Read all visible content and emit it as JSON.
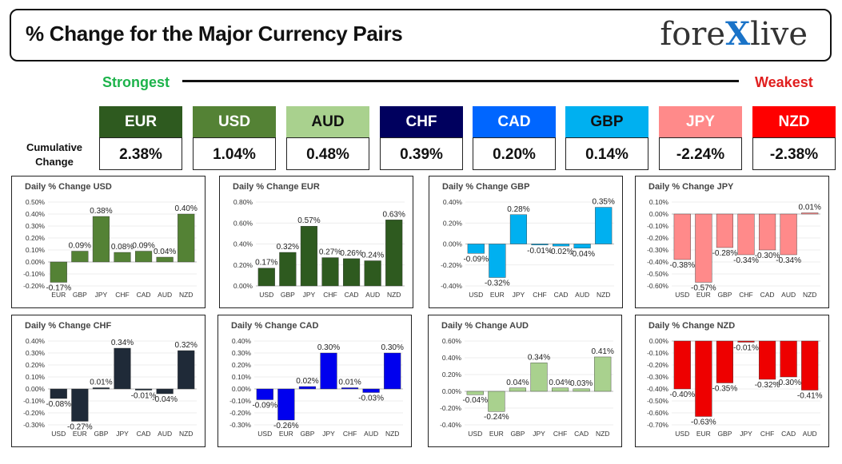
{
  "header": {
    "title": "% Change for the Major Currency Pairs",
    "logo_left": "fore",
    "logo_x": "X",
    "logo_right": "live"
  },
  "ranking": {
    "strongest": "Strongest",
    "weakest": "Weakest"
  },
  "cumulative_label": "Cumulative Change",
  "currencies": [
    {
      "name": "EUR",
      "value": "2.38%",
      "color": "#2e5a1f",
      "text_color": "#ffffff"
    },
    {
      "name": "USD",
      "value": "1.04%",
      "color": "#548235",
      "text_color": "#ffffff"
    },
    {
      "name": "AUD",
      "value": "0.48%",
      "color": "#a9d18e",
      "text_color": "#111111"
    },
    {
      "name": "CHF",
      "value": "0.39%",
      "color": "#00005e",
      "text_color": "#ffffff"
    },
    {
      "name": "CAD",
      "value": "0.20%",
      "color": "#0066ff",
      "text_color": "#ffffff"
    },
    {
      "name": "GBP",
      "value": "0.14%",
      "color": "#00b0f0",
      "text_color": "#111111"
    },
    {
      "name": "JPY",
      "value": "-2.24%",
      "color": "#ff8a8a",
      "text_color": "#ffffff"
    },
    {
      "name": "NZD",
      "value": "-2.38%",
      "color": "#ff0000",
      "text_color": "#ffffff"
    }
  ],
  "chart_data": [
    {
      "type": "bar",
      "title": "Daily % Change USD",
      "categories": [
        "EUR",
        "GBP",
        "JPY",
        "CHF",
        "CAD",
        "AUD",
        "NZD"
      ],
      "values": [
        -0.17,
        0.09,
        0.38,
        0.08,
        0.09,
        0.04,
        0.4
      ],
      "labels": [
        "-0.17%",
        "0.09%",
        "0.38%",
        "0.08%",
        "0.09%",
        "0.04%",
        "0.40%"
      ],
      "ylim": [
        -0.2,
        0.5
      ],
      "yticks": [
        "0.50%",
        "0.40%",
        "0.30%",
        "0.20%",
        "0.10%",
        "0.00%",
        "-0.10%",
        "-0.20%"
      ],
      "color": "#548235"
    },
    {
      "type": "bar",
      "title": "Daily % Change EUR",
      "categories": [
        "USD",
        "GBP",
        "JPY",
        "CHF",
        "CAD",
        "AUD",
        "NZD"
      ],
      "values": [
        0.17,
        0.32,
        0.57,
        0.27,
        0.26,
        0.24,
        0.63
      ],
      "labels": [
        "0.17%",
        "0.32%",
        "0.57%",
        "0.27%",
        "0.26%",
        "0.24%",
        "0.63%"
      ],
      "ylim": [
        0,
        0.8
      ],
      "yticks": [
        "0.80%",
        "0.60%",
        "0.40%",
        "0.20%",
        "0.00%"
      ],
      "color": "#2e5a1f"
    },
    {
      "type": "bar",
      "title": "Daily % Change GBP",
      "categories": [
        "USD",
        "EUR",
        "JPY",
        "CHF",
        "CAD",
        "AUD",
        "NZD"
      ],
      "values": [
        -0.09,
        -0.32,
        0.28,
        -0.01,
        -0.02,
        -0.04,
        0.35
      ],
      "labels": [
        "-0.09%",
        "-0.32%",
        "0.28%",
        "-0.01%",
        "-0.02%",
        "-0.04%",
        "0.35%"
      ],
      "ylim": [
        -0.4,
        0.4
      ],
      "yticks": [
        "0.40%",
        "0.20%",
        "0.00%",
        "-0.20%",
        "-0.40%"
      ],
      "color": "#00b0f0"
    },
    {
      "type": "bar",
      "title": "Daily % Change JPY",
      "categories": [
        "USD",
        "EUR",
        "GBP",
        "CHF",
        "CAD",
        "AUD",
        "NZD"
      ],
      "values": [
        -0.38,
        -0.57,
        -0.28,
        -0.34,
        -0.3,
        -0.34,
        0.01
      ],
      "labels": [
        "-0.38%",
        "-0.57%",
        "-0.28%",
        "-0.34%",
        "-0.30%",
        "-0.34%",
        "0.01%"
      ],
      "ylim": [
        -0.6,
        0.1
      ],
      "yticks": [
        "0.10%",
        "0.00%",
        "-0.10%",
        "-0.20%",
        "-0.30%",
        "-0.40%",
        "-0.50%",
        "-0.60%"
      ],
      "color": "#ff8a8a"
    },
    {
      "type": "bar",
      "title": "Daily % Change CHF",
      "categories": [
        "USD",
        "EUR",
        "GBP",
        "JPY",
        "CAD",
        "AUD",
        "NZD"
      ],
      "values": [
        -0.08,
        -0.27,
        0.01,
        0.34,
        -0.01,
        -0.04,
        0.32
      ],
      "labels": [
        "-0.08%",
        "-0.27%",
        "0.01%",
        "0.34%",
        "-0.01%",
        "-0.04%",
        "0.32%"
      ],
      "ylim": [
        -0.3,
        0.4
      ],
      "yticks": [
        "0.40%",
        "0.30%",
        "0.20%",
        "0.10%",
        "0.00%",
        "-0.10%",
        "-0.20%",
        "-0.30%"
      ],
      "color": "#1f2a38"
    },
    {
      "type": "bar",
      "title": "Daily % Change CAD",
      "categories": [
        "USD",
        "EUR",
        "GBP",
        "JPY",
        "CHF",
        "AUD",
        "NZD"
      ],
      "values": [
        -0.09,
        -0.26,
        0.02,
        0.3,
        0.01,
        -0.03,
        0.3
      ],
      "labels": [
        "-0.09%",
        "-0.26%",
        "0.02%",
        "0.30%",
        "0.01%",
        "-0.03%",
        "0.30%"
      ],
      "ylim": [
        -0.3,
        0.4
      ],
      "yticks": [
        "0.40%",
        "0.30%",
        "0.20%",
        "0.10%",
        "0.00%",
        "-0.10%",
        "-0.20%",
        "-0.30%"
      ],
      "color": "#0000ee"
    },
    {
      "type": "bar",
      "title": "Daily % Change AUD",
      "categories": [
        "USD",
        "EUR",
        "GBP",
        "JPY",
        "CHF",
        "CAD",
        "NZD"
      ],
      "values": [
        -0.04,
        -0.24,
        0.04,
        0.34,
        0.04,
        0.03,
        0.41
      ],
      "labels": [
        "-0.04%",
        "-0.24%",
        "0.04%",
        "0.34%",
        "0.04%",
        "0.03%",
        "0.41%"
      ],
      "ylim": [
        -0.4,
        0.6
      ],
      "yticks": [
        "0.60%",
        "0.40%",
        "0.20%",
        "0.00%",
        "-0.20%",
        "-0.40%"
      ],
      "color": "#a9d18e"
    },
    {
      "type": "bar",
      "title": "Daily % Change NZD",
      "categories": [
        "USD",
        "EUR",
        "GBP",
        "JPY",
        "CHF",
        "CAD",
        "AUD"
      ],
      "values": [
        -0.4,
        -0.63,
        -0.35,
        -0.01,
        -0.32,
        -0.3,
        -0.41
      ],
      "labels": [
        "-0.40%",
        "-0.63%",
        "-0.35%",
        "-0.01%",
        "-0.32%",
        "-0.30%",
        "-0.41%"
      ],
      "ylim": [
        -0.7,
        0.0
      ],
      "yticks": [
        "0.00%",
        "-0.10%",
        "-0.20%",
        "-0.30%",
        "-0.40%",
        "-0.50%",
        "-0.60%",
        "-0.70%"
      ],
      "color": "#ee0000"
    }
  ]
}
